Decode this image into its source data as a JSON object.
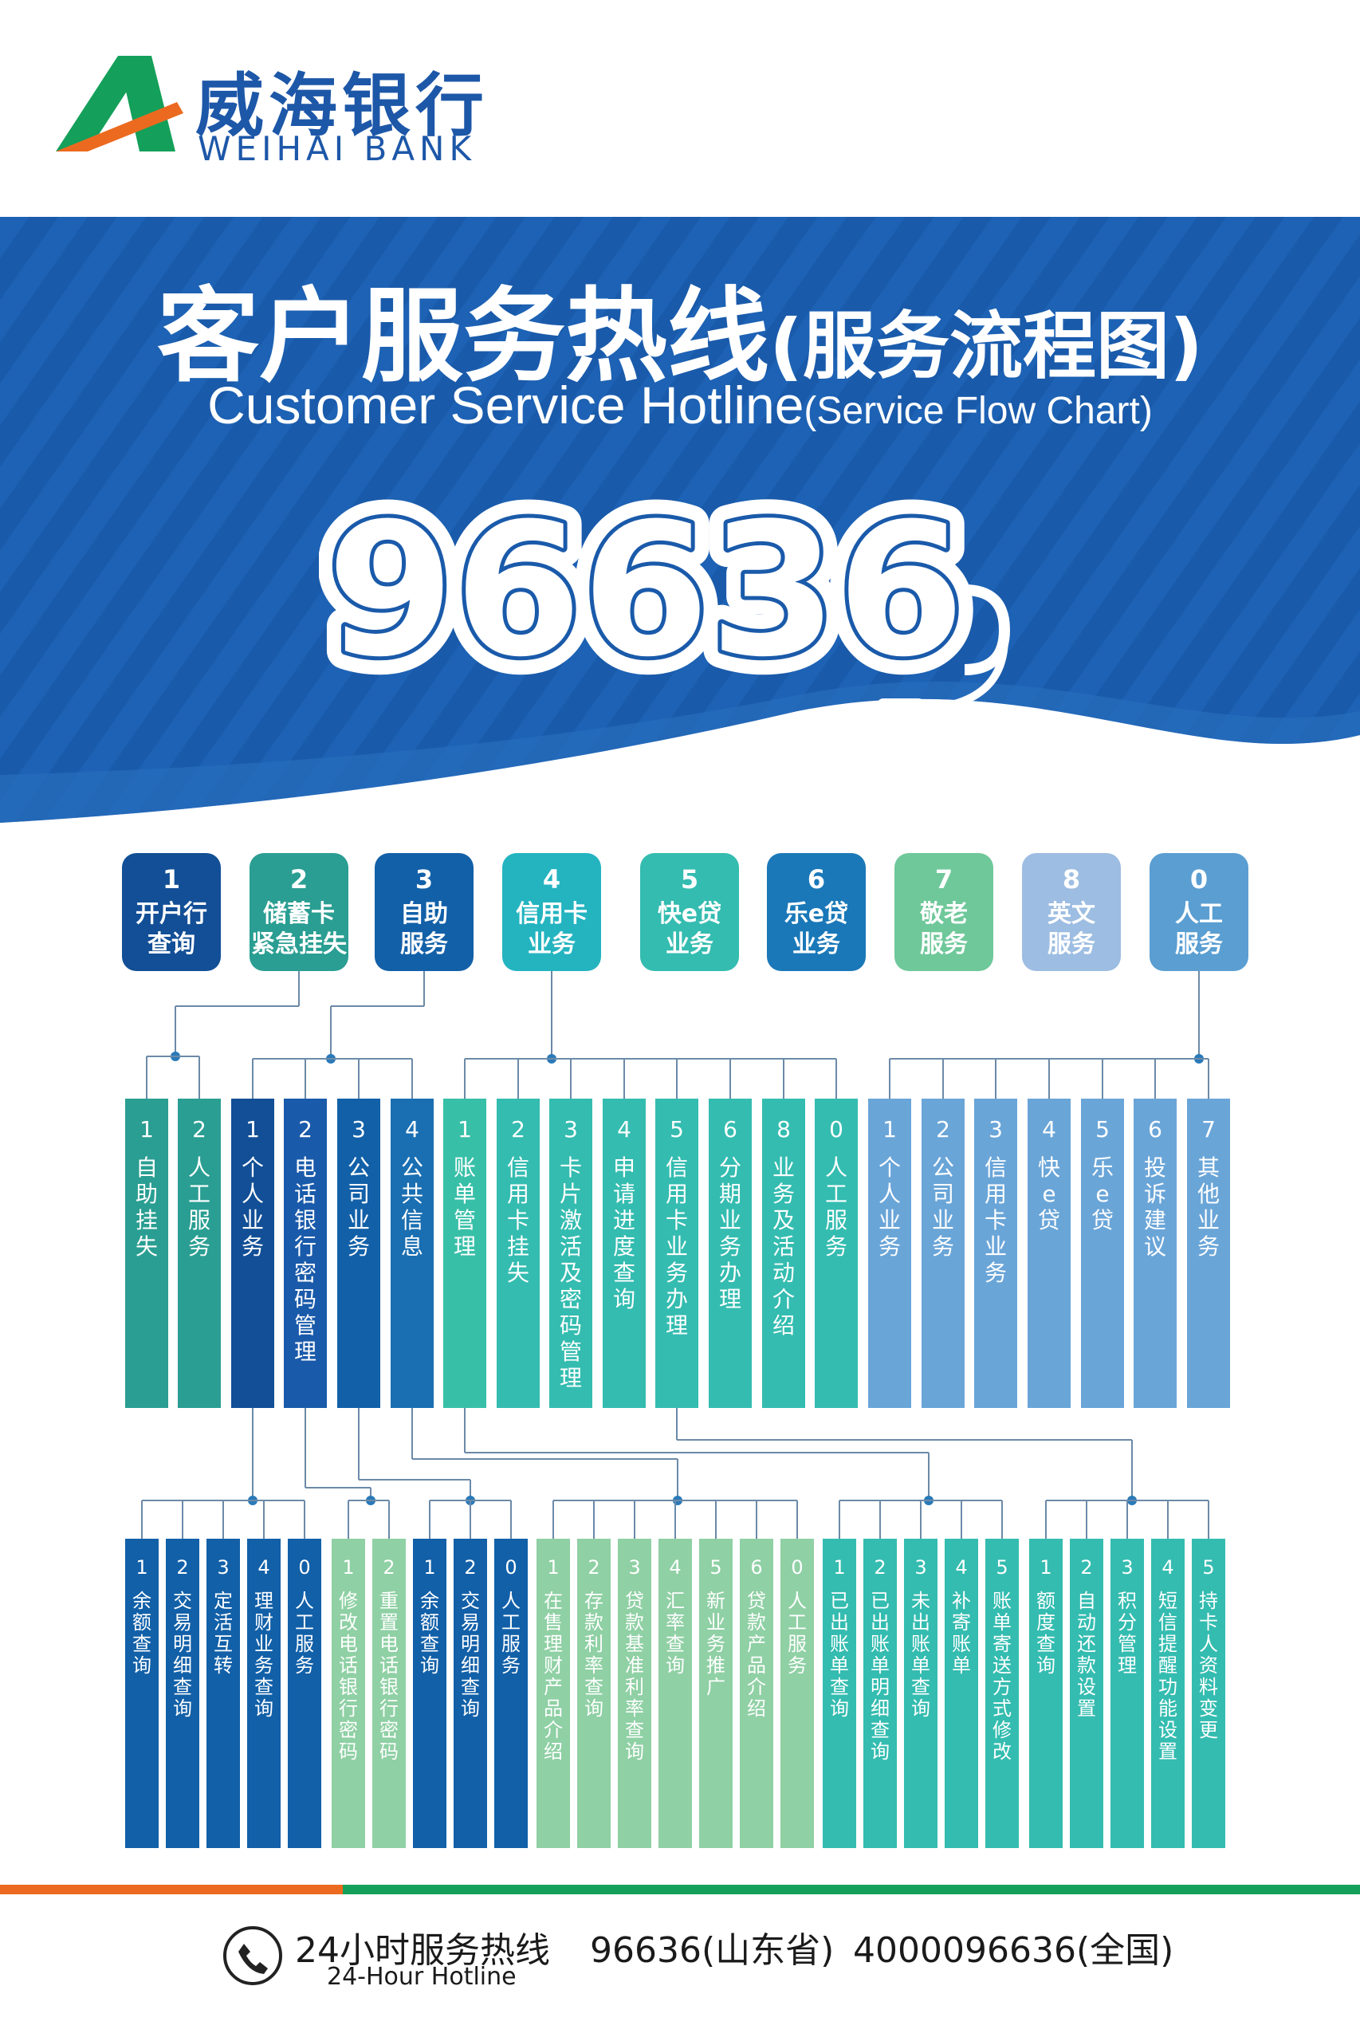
{
  "brand": {
    "name_cn": "威海银行",
    "name_en": "WEIHAI BANK"
  },
  "colors": {
    "navy": "#124f96",
    "blue_banner": "#1a5aaa",
    "orange": "#ec6a1f",
    "green": "#14a05a"
  },
  "hero": {
    "title_main": "客户服务热线",
    "title_paren": "(服务流程图)",
    "subtitle_main": "Customer Service Hotline",
    "subtitle_paren": "(Service Flow Chart)",
    "hotline": "96636"
  },
  "menus": [
    {
      "key": "1",
      "label": [
        "开户行",
        "查询"
      ],
      "color": "#124f96"
    },
    {
      "key": "2",
      "label": [
        "储蓄卡",
        "紧急挂失"
      ],
      "color": "#2a9e92"
    },
    {
      "key": "3",
      "label": [
        "自助",
        "服务"
      ],
      "color": "#1260a8"
    },
    {
      "key": "4",
      "label": [
        "信用卡",
        "业务"
      ],
      "color": "#23b4c0"
    },
    {
      "key": "5",
      "label": [
        "快e贷",
        "业务"
      ],
      "color": "#34bcb0"
    },
    {
      "key": "6",
      "label": [
        "乐e贷",
        "业务"
      ],
      "color": "#1a78b8"
    },
    {
      "key": "7",
      "label": [
        "敬老",
        "服务"
      ],
      "color": "#6fc89a"
    },
    {
      "key": "8",
      "label": [
        "英文",
        "服务"
      ],
      "color": "#9dbde2"
    },
    {
      "key": "0",
      "label": [
        "人工",
        "服务"
      ],
      "color": "#5a9ed2"
    }
  ],
  "level2": [
    {
      "key": "1",
      "label": "自助挂失",
      "color": "#2a9e92"
    },
    {
      "key": "2",
      "label": "人工服务",
      "color": "#2a9e92"
    },
    {
      "key": "1",
      "label": "个人业务",
      "color": "#124f96"
    },
    {
      "key": "2",
      "label": "电话银行密码管理",
      "color": "#1a5aaa"
    },
    {
      "key": "3",
      "label": "公司业务",
      "color": "#1260a8"
    },
    {
      "key": "4",
      "label": "公共信息",
      "color": "#1a6fb2"
    },
    {
      "key": "1",
      "label": "账单管理",
      "color": "#38bfa8"
    },
    {
      "key": "2",
      "label": "信用卡挂失",
      "color": "#34bcb0"
    },
    {
      "key": "3",
      "label": "卡片激活及密码管理",
      "color": "#34bcb0"
    },
    {
      "key": "4",
      "label": "申请进度查询",
      "color": "#34bcb0"
    },
    {
      "key": "5",
      "label": "信用卡业务办理",
      "color": "#34bcb0"
    },
    {
      "key": "6",
      "label": "分期业务办理",
      "color": "#34bcb0"
    },
    {
      "key": "8",
      "label": "业务及活动介绍",
      "color": "#34bcb0"
    },
    {
      "key": "0",
      "label": "人工服务",
      "color": "#34bcb0"
    },
    {
      "key": "1",
      "label": "个人业务",
      "color": "#6aa5d8"
    },
    {
      "key": "2",
      "label": "公司业务",
      "color": "#6aa5d8"
    },
    {
      "key": "3",
      "label": "信用卡业务",
      "color": "#6aa5d8"
    },
    {
      "key": "4",
      "label": "快e贷",
      "color": "#6aa5d8"
    },
    {
      "key": "5",
      "label": "乐e贷",
      "color": "#6aa5d8"
    },
    {
      "key": "6",
      "label": "投诉建议",
      "color": "#6aa5d8"
    },
    {
      "key": "7",
      "label": "其他业务",
      "color": "#6aa5d8"
    }
  ],
  "level3": [
    {
      "key": "1",
      "label": "余额查询",
      "color": "#1260a8"
    },
    {
      "key": "2",
      "label": "交易明细查询",
      "color": "#1260a8"
    },
    {
      "key": "3",
      "label": "定活互转",
      "color": "#1260a8"
    },
    {
      "key": "4",
      "label": "理财业务查询",
      "color": "#1260a8"
    },
    {
      "key": "0",
      "label": "人工服务",
      "color": "#1260a8"
    },
    {
      "key": "1",
      "label": "修改电话银行密码",
      "color": "#8fd0a4"
    },
    {
      "key": "2",
      "label": "重置电话银行密码",
      "color": "#8fd0a4"
    },
    {
      "key": "1",
      "label": "余额查询",
      "color": "#1260a8"
    },
    {
      "key": "2",
      "label": "交易明细查询",
      "color": "#1260a8"
    },
    {
      "key": "0",
      "label": "人工服务",
      "color": "#1260a8"
    },
    {
      "key": "1",
      "label": "在售理财产品介绍",
      "color": "#8fd0a4"
    },
    {
      "key": "2",
      "label": "存款利率查询",
      "color": "#8fd0a4"
    },
    {
      "key": "3",
      "label": "贷款基准利率查询",
      "color": "#8fd0a4"
    },
    {
      "key": "4",
      "label": "汇率查询",
      "color": "#8fd0a4"
    },
    {
      "key": "5",
      "label": "新业务推广",
      "color": "#8fd0a4"
    },
    {
      "key": "6",
      "label": "贷款产品介绍",
      "color": "#8fd0a4"
    },
    {
      "key": "0",
      "label": "人工服务",
      "color": "#8fd0a4"
    },
    {
      "key": "1",
      "label": "已出账单查询",
      "color": "#34bcb0"
    },
    {
      "key": "2",
      "label": "已出账单明细查询",
      "color": "#34bcb0"
    },
    {
      "key": "3",
      "label": "未出账单查询",
      "color": "#34bcb0"
    },
    {
      "key": "4",
      "label": "补寄账单",
      "color": "#34bcb0"
    },
    {
      "key": "5",
      "label": "账单寄送方式修改",
      "color": "#34bcb0"
    },
    {
      "key": "1",
      "label": "额度查询",
      "color": "#34bcb0"
    },
    {
      "key": "2",
      "label": "自动还款设置",
      "color": "#34bcb0"
    },
    {
      "key": "3",
      "label": "积分管理",
      "color": "#34bcb0"
    },
    {
      "key": "4",
      "label": "短信提醒功能设置",
      "color": "#34bcb0"
    },
    {
      "key": "5",
      "label": "持卡人资料变更",
      "color": "#34bcb0"
    }
  ],
  "footer": {
    "label_cn": "24小时服务热线",
    "label_en": "24-Hour Hotline",
    "number_provincial": "96636(山东省)",
    "number_national": "4000096636(全国)"
  }
}
